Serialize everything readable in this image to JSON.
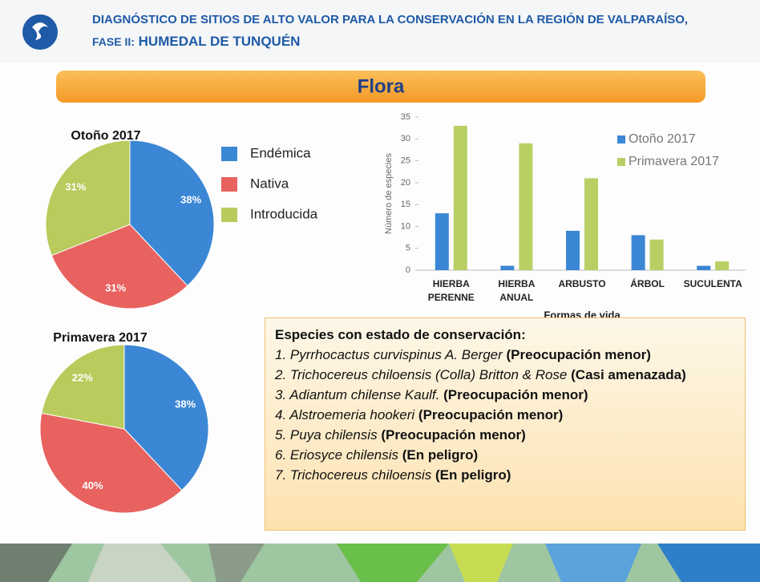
{
  "header": {
    "title_line1": "DIAGNÓSTICO DE SITIOS DE ALTO VALOR PARA LA CONSERVACIÓN EN LA REGIÓN DE VALPARAÍSO,",
    "title_line2_prefix": "FASE II:",
    "title_line2": "HUMEDAL DE TUNQUÉN"
  },
  "section_title": "Flora",
  "pie_legend": {
    "labels": [
      "Endémica",
      "Nativa",
      "Introducida"
    ],
    "colors": [
      "#3c87d5",
      "#e8625f",
      "#b8cb5c"
    ]
  },
  "chart_data": [
    {
      "type": "pie",
      "title": "Otoño 2017",
      "values": [
        38,
        31,
        31
      ],
      "value_labels": [
        "38%",
        "31%",
        "31%"
      ]
    },
    {
      "type": "pie",
      "title": "Primavera 2017",
      "values": [
        38,
        40,
        22
      ],
      "value_labels": [
        "38%",
        "40%",
        "22%"
      ]
    },
    {
      "type": "bar",
      "xlabel": "Formas de vida",
      "ylabel": "Número de especies",
      "categories": [
        "HIERBA PERENNE",
        "HIERBA ANUAL",
        "ARBUSTO",
        "ÁRBOL",
        "SUCULENTA"
      ],
      "series": [
        {
          "name": "Otoño 2017",
          "color": "#3c87d5",
          "values": [
            13,
            1,
            9,
            8,
            1
          ]
        },
        {
          "name": "Primavera 2017",
          "color": "#b8cf64",
          "values": [
            33,
            29,
            21,
            7,
            2
          ]
        }
      ],
      "ylim": [
        0,
        35
      ],
      "yticks": [
        0,
        5,
        10,
        15,
        20,
        25,
        30,
        35
      ]
    }
  ],
  "conservation": {
    "heading": "Especies con estado de conservación:",
    "items": [
      {
        "species": "1. Pyrrhocactus curvispinus A. Berger",
        "status": "(Preocupación menor)"
      },
      {
        "species": "2. Trichocereus chiloensis (Colla) Britton & Rose",
        "status": "(Casi amenazada)"
      },
      {
        "species": "3. Adiantum chilense Kaulf.",
        "status": "(Preocupación menor)"
      },
      {
        "species": "4. Alstroemeria hookeri",
        "status": "(Preocupación menor)"
      },
      {
        "species": "5. Puya chilensis",
        "status": "(Preocupación menor)"
      },
      {
        "species": "6. Eriosyce chilensis",
        "status": "(En peligro)"
      },
      {
        "species": "7. Trichocereus chiloensis",
        "status": "(En peligro)"
      }
    ]
  }
}
